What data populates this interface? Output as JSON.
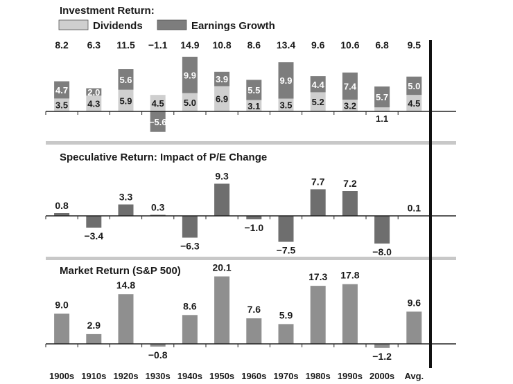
{
  "colors": {
    "dividends": "#cfcfcf",
    "earnings": "#7d7d7d",
    "speculative": "#6e6e6e",
    "market": "#8f8f8f",
    "separator": "#c8c8c8",
    "avg_line": "#111111",
    "text": "#1a1a1a"
  },
  "chart_data": [
    {
      "type": "bar",
      "stacked": true,
      "title": "Investment Return:",
      "legend": [
        {
          "name": "Dividends",
          "color_key": "dividends"
        },
        {
          "name": "Earnings Growth",
          "color_key": "earnings"
        }
      ],
      "categories": [
        "1900s",
        "1910s",
        "1920s",
        "1930s",
        "1940s",
        "1950s",
        "1960s",
        "1970s",
        "1980s",
        "1990s",
        "2000s",
        "Avg."
      ],
      "series": [
        {
          "name": "Dividends",
          "values": [
            3.5,
            4.3,
            5.9,
            4.5,
            5.0,
            6.9,
            3.1,
            3.5,
            5.2,
            3.2,
            1.1,
            4.5
          ]
        },
        {
          "name": "Earnings Growth",
          "values": [
            4.7,
            2.0,
            5.6,
            -5.6,
            9.9,
            3.9,
            5.5,
            9.9,
            4.4,
            7.4,
            5.7,
            5.0
          ]
        }
      ],
      "segment_labels": {
        "Dividends": [
          "3.5",
          "4.3",
          "5.9",
          "4.5",
          "5.0",
          "6.9",
          "3.1",
          "3.5",
          "5.2",
          "3.2",
          "1.1",
          "4.5"
        ],
        "Earnings Growth": [
          "4.7",
          "2.0",
          "5.6",
          "−5.6",
          "9.9",
          "3.9",
          "5.5",
          "9.9",
          "4.4",
          "7.4",
          "5.7",
          "5.0"
        ]
      },
      "totals": [
        "8.2",
        "6.3",
        "11.5",
        "−1.1",
        "14.9",
        "10.8",
        "8.6",
        "13.4",
        "9.6",
        "10.6",
        "6.8",
        "9.5"
      ]
    },
    {
      "type": "bar",
      "title": "Speculative Return: Impact of P/E Change",
      "categories": [
        "1900s",
        "1910s",
        "1920s",
        "1930s",
        "1940s",
        "1950s",
        "1960s",
        "1970s",
        "1980s",
        "1990s",
        "2000s",
        "Avg."
      ],
      "values": [
        0.8,
        -3.4,
        3.3,
        0.3,
        -6.3,
        9.3,
        -1.0,
        -7.5,
        7.7,
        7.2,
        -8.0,
        0.1
      ],
      "labels": [
        "0.8",
        "−3.4",
        "3.3",
        "0.3",
        "−6.3",
        "9.3",
        "−1.0",
        "−7.5",
        "7.7",
        "7.2",
        "−8.0",
        "0.1"
      ]
    },
    {
      "type": "bar",
      "title": "Market Return (S&P 500)",
      "categories": [
        "1900s",
        "1910s",
        "1920s",
        "1930s",
        "1940s",
        "1950s",
        "1960s",
        "1970s",
        "1980s",
        "1990s",
        "2000s",
        "Avg."
      ],
      "values": [
        9.0,
        2.9,
        14.8,
        -0.8,
        8.6,
        20.1,
        7.6,
        5.9,
        17.3,
        17.8,
        -1.2,
        9.6
      ],
      "labels": [
        "9.0",
        "2.9",
        "14.8",
        "−0.8",
        "8.6",
        "20.1",
        "7.6",
        "5.9",
        "17.3",
        "17.8",
        "−1.2",
        "9.6"
      ]
    }
  ]
}
